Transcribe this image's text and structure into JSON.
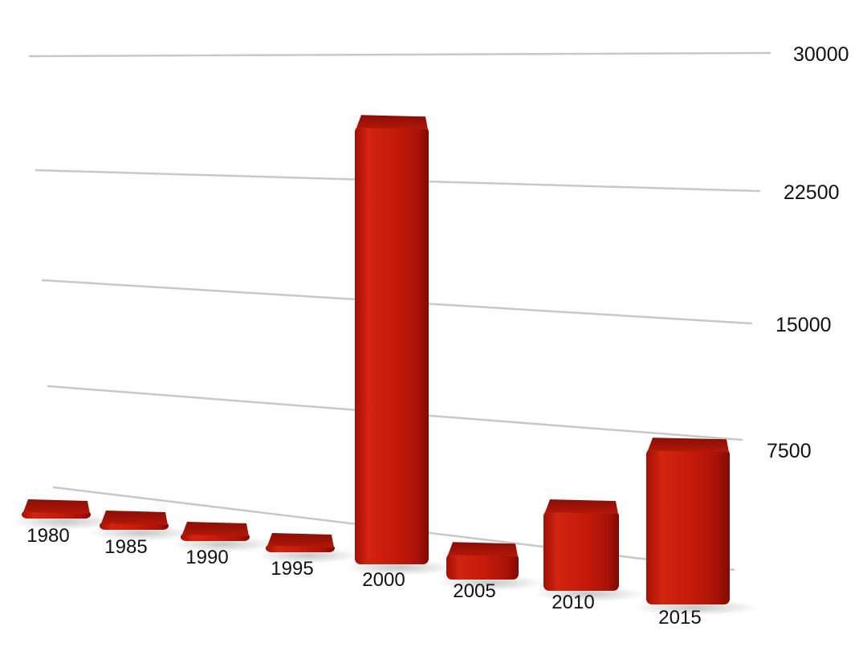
{
  "chart_data": {
    "type": "bar",
    "style": "3d-perspective",
    "categories": [
      "1980",
      "1985",
      "1990",
      "1995",
      "2000",
      "2005",
      "2010",
      "2015"
    ],
    "values": [
      150,
      150,
      150,
      150,
      25500,
      1500,
      4500,
      8500
    ],
    "ylim": [
      0,
      30000
    ],
    "yticks": [
      "7500",
      "15000",
      "22500",
      "30000"
    ],
    "ytick_values": [
      7500,
      15000,
      22500,
      30000
    ],
    "grid": true,
    "legend": "none",
    "color": "#c0180c"
  }
}
